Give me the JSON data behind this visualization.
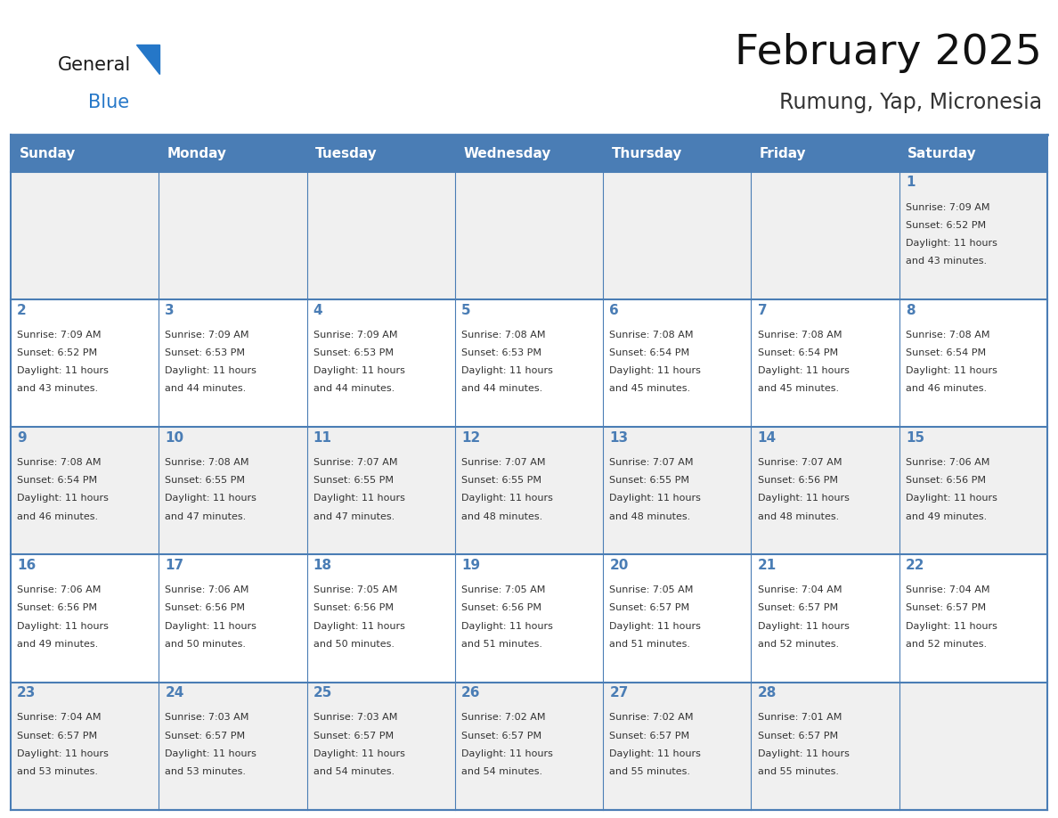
{
  "title": "February 2025",
  "subtitle": "Rumung, Yap, Micronesia",
  "header_bg_color": "#4a7db5",
  "header_text_color": "#ffffff",
  "cell_bg_color_odd": "#f0f0f0",
  "cell_bg_color_even": "#ffffff",
  "grid_line_color": "#4a7db5",
  "day_number_color": "#4a7db5",
  "text_color": "#333333",
  "days_of_week": [
    "Sunday",
    "Monday",
    "Tuesday",
    "Wednesday",
    "Thursday",
    "Friday",
    "Saturday"
  ],
  "weeks": [
    [
      {
        "day": null,
        "sunrise": null,
        "sunset": null,
        "daylight": null
      },
      {
        "day": null,
        "sunrise": null,
        "sunset": null,
        "daylight": null
      },
      {
        "day": null,
        "sunrise": null,
        "sunset": null,
        "daylight": null
      },
      {
        "day": null,
        "sunrise": null,
        "sunset": null,
        "daylight": null
      },
      {
        "day": null,
        "sunrise": null,
        "sunset": null,
        "daylight": null
      },
      {
        "day": null,
        "sunrise": null,
        "sunset": null,
        "daylight": null
      },
      {
        "day": 1,
        "sunrise": "7:09 AM",
        "sunset": "6:52 PM",
        "daylight": "11 hours and 43 minutes."
      }
    ],
    [
      {
        "day": 2,
        "sunrise": "7:09 AM",
        "sunset": "6:52 PM",
        "daylight": "11 hours and 43 minutes."
      },
      {
        "day": 3,
        "sunrise": "7:09 AM",
        "sunset": "6:53 PM",
        "daylight": "11 hours and 44 minutes."
      },
      {
        "day": 4,
        "sunrise": "7:09 AM",
        "sunset": "6:53 PM",
        "daylight": "11 hours and 44 minutes."
      },
      {
        "day": 5,
        "sunrise": "7:08 AM",
        "sunset": "6:53 PM",
        "daylight": "11 hours and 44 minutes."
      },
      {
        "day": 6,
        "sunrise": "7:08 AM",
        "sunset": "6:54 PM",
        "daylight": "11 hours and 45 minutes."
      },
      {
        "day": 7,
        "sunrise": "7:08 AM",
        "sunset": "6:54 PM",
        "daylight": "11 hours and 45 minutes."
      },
      {
        "day": 8,
        "sunrise": "7:08 AM",
        "sunset": "6:54 PM",
        "daylight": "11 hours and 46 minutes."
      }
    ],
    [
      {
        "day": 9,
        "sunrise": "7:08 AM",
        "sunset": "6:54 PM",
        "daylight": "11 hours and 46 minutes."
      },
      {
        "day": 10,
        "sunrise": "7:08 AM",
        "sunset": "6:55 PM",
        "daylight": "11 hours and 47 minutes."
      },
      {
        "day": 11,
        "sunrise": "7:07 AM",
        "sunset": "6:55 PM",
        "daylight": "11 hours and 47 minutes."
      },
      {
        "day": 12,
        "sunrise": "7:07 AM",
        "sunset": "6:55 PM",
        "daylight": "11 hours and 48 minutes."
      },
      {
        "day": 13,
        "sunrise": "7:07 AM",
        "sunset": "6:55 PM",
        "daylight": "11 hours and 48 minutes."
      },
      {
        "day": 14,
        "sunrise": "7:07 AM",
        "sunset": "6:56 PM",
        "daylight": "11 hours and 48 minutes."
      },
      {
        "day": 15,
        "sunrise": "7:06 AM",
        "sunset": "6:56 PM",
        "daylight": "11 hours and 49 minutes."
      }
    ],
    [
      {
        "day": 16,
        "sunrise": "7:06 AM",
        "sunset": "6:56 PM",
        "daylight": "11 hours and 49 minutes."
      },
      {
        "day": 17,
        "sunrise": "7:06 AM",
        "sunset": "6:56 PM",
        "daylight": "11 hours and 50 minutes."
      },
      {
        "day": 18,
        "sunrise": "7:05 AM",
        "sunset": "6:56 PM",
        "daylight": "11 hours and 50 minutes."
      },
      {
        "day": 19,
        "sunrise": "7:05 AM",
        "sunset": "6:56 PM",
        "daylight": "11 hours and 51 minutes."
      },
      {
        "day": 20,
        "sunrise": "7:05 AM",
        "sunset": "6:57 PM",
        "daylight": "11 hours and 51 minutes."
      },
      {
        "day": 21,
        "sunrise": "7:04 AM",
        "sunset": "6:57 PM",
        "daylight": "11 hours and 52 minutes."
      },
      {
        "day": 22,
        "sunrise": "7:04 AM",
        "sunset": "6:57 PM",
        "daylight": "11 hours and 52 minutes."
      }
    ],
    [
      {
        "day": 23,
        "sunrise": "7:04 AM",
        "sunset": "6:57 PM",
        "daylight": "11 hours and 53 minutes."
      },
      {
        "day": 24,
        "sunrise": "7:03 AM",
        "sunset": "6:57 PM",
        "daylight": "11 hours and 53 minutes."
      },
      {
        "day": 25,
        "sunrise": "7:03 AM",
        "sunset": "6:57 PM",
        "daylight": "11 hours and 54 minutes."
      },
      {
        "day": 26,
        "sunrise": "7:02 AM",
        "sunset": "6:57 PM",
        "daylight": "11 hours and 54 minutes."
      },
      {
        "day": 27,
        "sunrise": "7:02 AM",
        "sunset": "6:57 PM",
        "daylight": "11 hours and 55 minutes."
      },
      {
        "day": 28,
        "sunrise": "7:01 AM",
        "sunset": "6:57 PM",
        "daylight": "11 hours and 55 minutes."
      },
      {
        "day": null,
        "sunrise": null,
        "sunset": null,
        "daylight": null
      }
    ]
  ],
  "logo_text_general": "General",
  "logo_text_blue": "Blue",
  "logo_general_color": "#1a1a1a",
  "logo_blue_color": "#2577c8",
  "logo_triangle_color": "#2577c8",
  "title_fontsize": 34,
  "subtitle_fontsize": 17,
  "header_fontsize": 11,
  "day_num_fontsize": 11,
  "cell_text_fontsize": 8
}
